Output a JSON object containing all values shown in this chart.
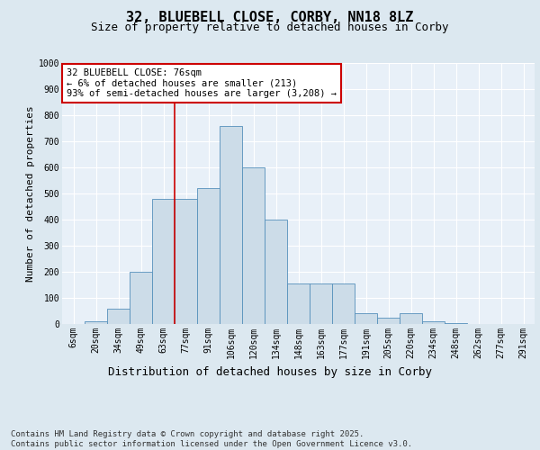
{
  "title1": "32, BLUEBELL CLOSE, CORBY, NN18 8LZ",
  "title2": "Size of property relative to detached houses in Corby",
  "xlabel": "Distribution of detached houses by size in Corby",
  "ylabel": "Number of detached properties",
  "bin_labels": [
    "6sqm",
    "20sqm",
    "34sqm",
    "49sqm",
    "63sqm",
    "77sqm",
    "91sqm",
    "106sqm",
    "120sqm",
    "134sqm",
    "148sqm",
    "163sqm",
    "177sqm",
    "191sqm",
    "205sqm",
    "220sqm",
    "234sqm",
    "248sqm",
    "262sqm",
    "277sqm",
    "291sqm"
  ],
  "bar_heights": [
    0,
    10,
    60,
    200,
    480,
    480,
    520,
    760,
    600,
    400,
    155,
    155,
    155,
    40,
    25,
    40,
    10,
    2,
    0,
    0,
    0
  ],
  "bar_color": "#ccdce8",
  "bar_edge_color": "#5590bb",
  "vline_color": "#cc0000",
  "annotation_text": "32 BLUEBELL CLOSE: 76sqm\n← 6% of detached houses are smaller (213)\n93% of semi-detached houses are larger (3,208) →",
  "annotation_box_color": "#ffffff",
  "annotation_box_edge_color": "#cc0000",
  "ylim": [
    0,
    1000
  ],
  "yticks": [
    0,
    100,
    200,
    300,
    400,
    500,
    600,
    700,
    800,
    900,
    1000
  ],
  "bg_color": "#dce8f0",
  "plot_bg_color": "#e8f0f8",
  "footer_text": "Contains HM Land Registry data © Crown copyright and database right 2025.\nContains public sector information licensed under the Open Government Licence v3.0.",
  "title1_fontsize": 11,
  "title2_fontsize": 9,
  "xlabel_fontsize": 9,
  "ylabel_fontsize": 8,
  "tick_fontsize": 7,
  "annotation_fontsize": 7.5,
  "footer_fontsize": 6.5
}
